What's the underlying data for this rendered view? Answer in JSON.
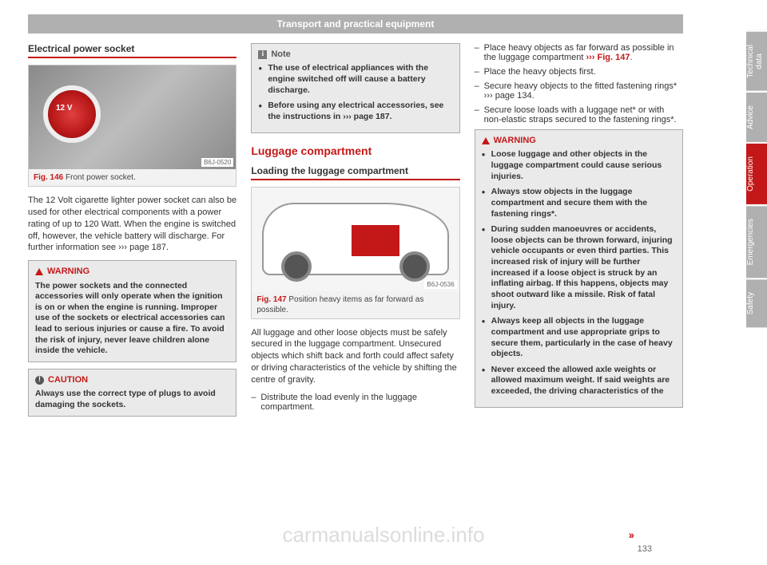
{
  "header": {
    "title": "Transport and practical equipment"
  },
  "col1": {
    "section_title": "Electrical power socket",
    "fig": {
      "num": "Fig. 146",
      "caption": "Front power socket.",
      "code": "B6J-0520"
    },
    "body": "The 12 Volt cigarette lighter power socket can also be used for other electrical components with a power rating of up to 120 Watt. When the engine is switched off, however, the vehicle battery will discharge. For further information see ››› page 187.",
    "warning": {
      "head": "WARNING",
      "text": "The power sockets and the connected accessories will only operate when the ignition is on or when the engine is running. Improper use of the sockets or electrical accessories can lead to serious injuries or cause a fire. To avoid the risk of injury, never leave children alone inside the vehicle."
    },
    "caution": {
      "head": "CAUTION",
      "text": "Always use the correct type of plugs to avoid damaging the sockets."
    }
  },
  "col2": {
    "note": {
      "head": "Note",
      "b1": "The use of electrical appliances with the engine switched off will cause a battery discharge.",
      "b2": "Before using any electrical accessories, see the instructions in ››› page 187."
    },
    "section_title_red": "Luggage compartment",
    "sub_title": "Loading the luggage compartment",
    "fig": {
      "num": "Fig. 147",
      "caption": "Position heavy items as far forward as possible.",
      "code": "B6J-0536"
    },
    "body": "All luggage and other loose objects must be safely secured in the luggage compartment. Unsecured objects which shift back and forth could affect safety or driving characteristics of the vehicle by shifting the centre of gravity.",
    "li1": "Distribute the load evenly in the luggage compartment."
  },
  "col3": {
    "li1a": "Place heavy objects as far forward as possible in the luggage compartment",
    "li1b": "››› Fig. 147",
    "li1c": ".",
    "li2": "Place the heavy objects first.",
    "li3": "Secure heavy objects to the fitted fastening rings* ››› page 134.",
    "li4": "Secure loose loads with a luggage net* or with non-elastic straps secured to the fastening rings*.",
    "warning": {
      "head": "WARNING",
      "b1": "Loose luggage and other objects in the luggage compartment could cause serious injuries.",
      "b2": "Always stow objects in the luggage compartment and secure them with the fastening rings*.",
      "b3": "During sudden manoeuvres or accidents, loose objects can be thrown forward, injuring vehicle occupants or even third parties. This increased risk of injury will be further increased if a loose object is struck by an inflating airbag. If this happens, objects may shoot outward like a missile. Risk of fatal injury.",
      "b4": "Always keep all objects in the luggage compartment and use appropriate grips to secure them, particularly in the case of heavy objects.",
      "b5": "Never exceed the allowed axle weights or allowed maximum weight. If said weights are exceeded, the driving characteristics of the"
    }
  },
  "tabs": {
    "t1": "Technical data",
    "t2": "Advice",
    "t3": "Operation",
    "t4": "Emergencies",
    "t5": "Safety"
  },
  "page_num": "133",
  "cont": "››",
  "watermark": "carmanualsonline.info"
}
